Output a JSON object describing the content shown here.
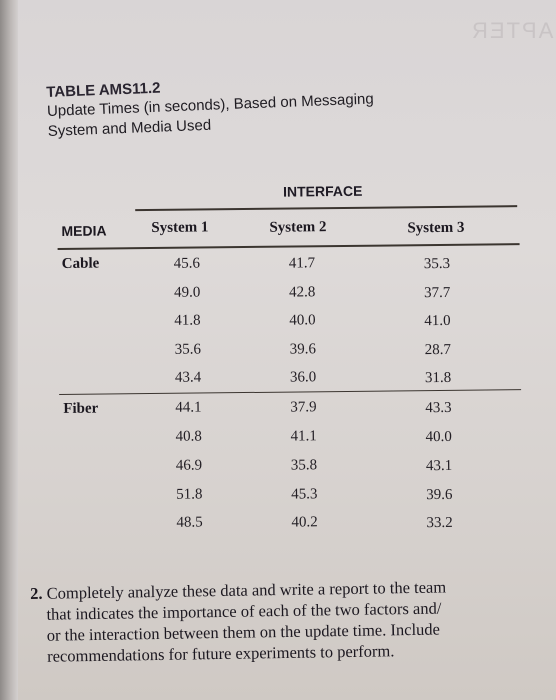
{
  "ghost_text": "CHAPTER",
  "table": {
    "number": "TABLE AMS11.2",
    "title_line1": "Update Times (in seconds), Based on Messaging",
    "title_line2": "System and Media Used",
    "factor_header": "INTERFACE",
    "row_factor_header": "MEDIA",
    "columns": [
      "System 1",
      "System 2",
      "System 3"
    ],
    "groups": [
      {
        "label": "Cable",
        "rows": [
          [
            "45.6",
            "41.7",
            "35.3"
          ],
          [
            "49.0",
            "42.8",
            "37.7"
          ],
          [
            "41.8",
            "40.0",
            "41.0"
          ],
          [
            "35.6",
            "39.6",
            "28.7"
          ],
          [
            "43.4",
            "36.0",
            "31.8"
          ]
        ]
      },
      {
        "label": "Fiber",
        "rows": [
          [
            "44.1",
            "37.9",
            "43.3"
          ],
          [
            "40.8",
            "41.1",
            "40.0"
          ],
          [
            "46.9",
            "35.8",
            "43.1"
          ],
          [
            "51.8",
            "45.3",
            "39.6"
          ],
          [
            "48.5",
            "40.2",
            "33.2"
          ]
        ]
      }
    ]
  },
  "question": {
    "number": "2.",
    "lines": [
      "Completely analyze these data and write a report to the team",
      "that indicates the importance of each of the two factors and/",
      "or the interaction between them on the update time. Include",
      "recommendations for future experiments to perform."
    ]
  }
}
